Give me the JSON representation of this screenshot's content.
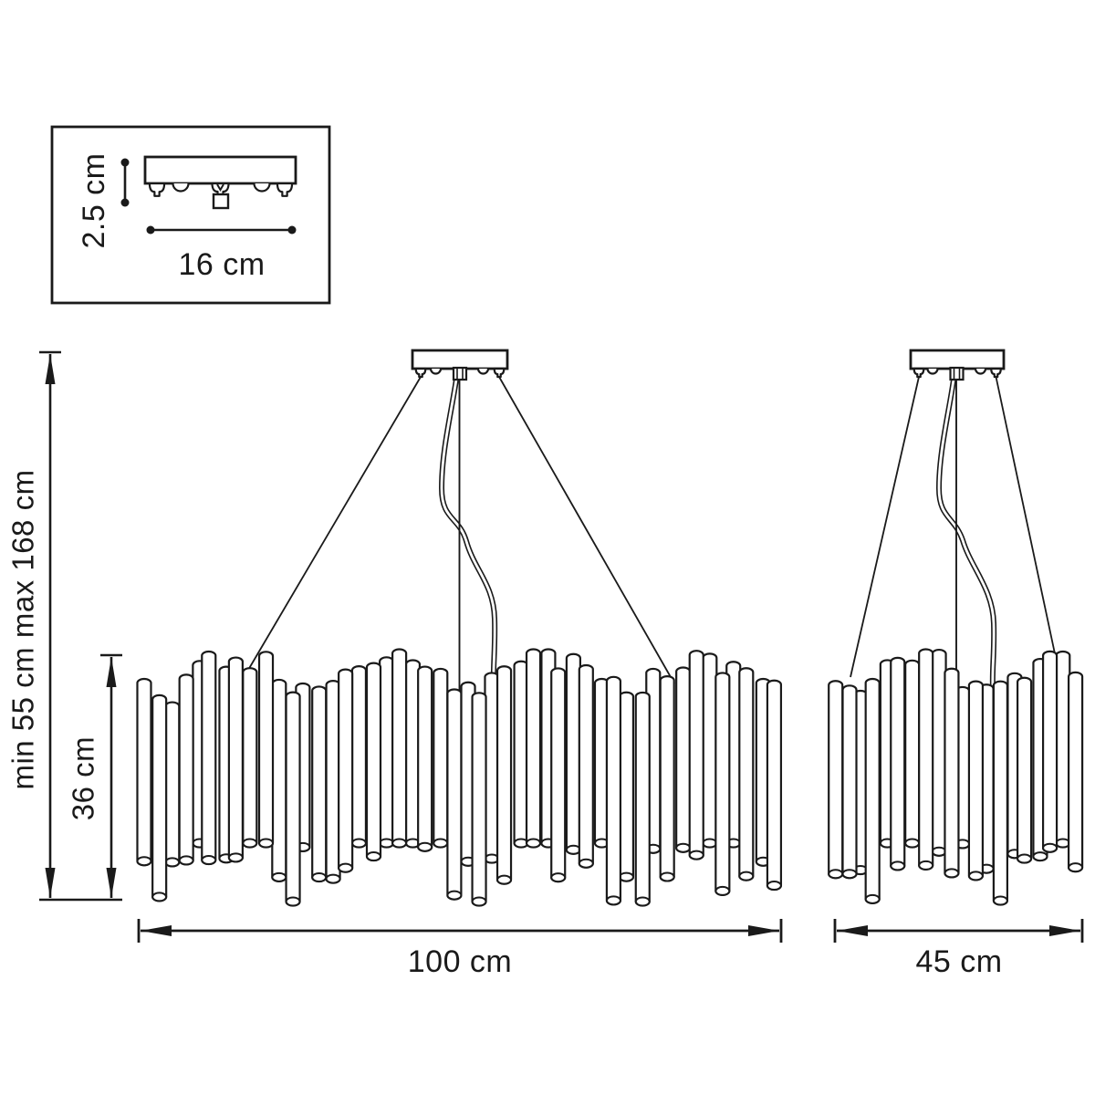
{
  "diagram": {
    "title_semantic": "chandelier-dimension-drawing",
    "inset": {
      "height_label": "2.5 cm",
      "width_label": "16 cm"
    },
    "suspension": {
      "height_range_label": "min 55 cm max 168 cm",
      "body_height_label": "36 cm"
    },
    "large_fixture": {
      "width_label": "100 cm"
    },
    "small_fixture": {
      "width_label": "45 cm"
    }
  },
  "colors": {
    "line": "#1a1a1a",
    "background": "#ffffff"
  }
}
